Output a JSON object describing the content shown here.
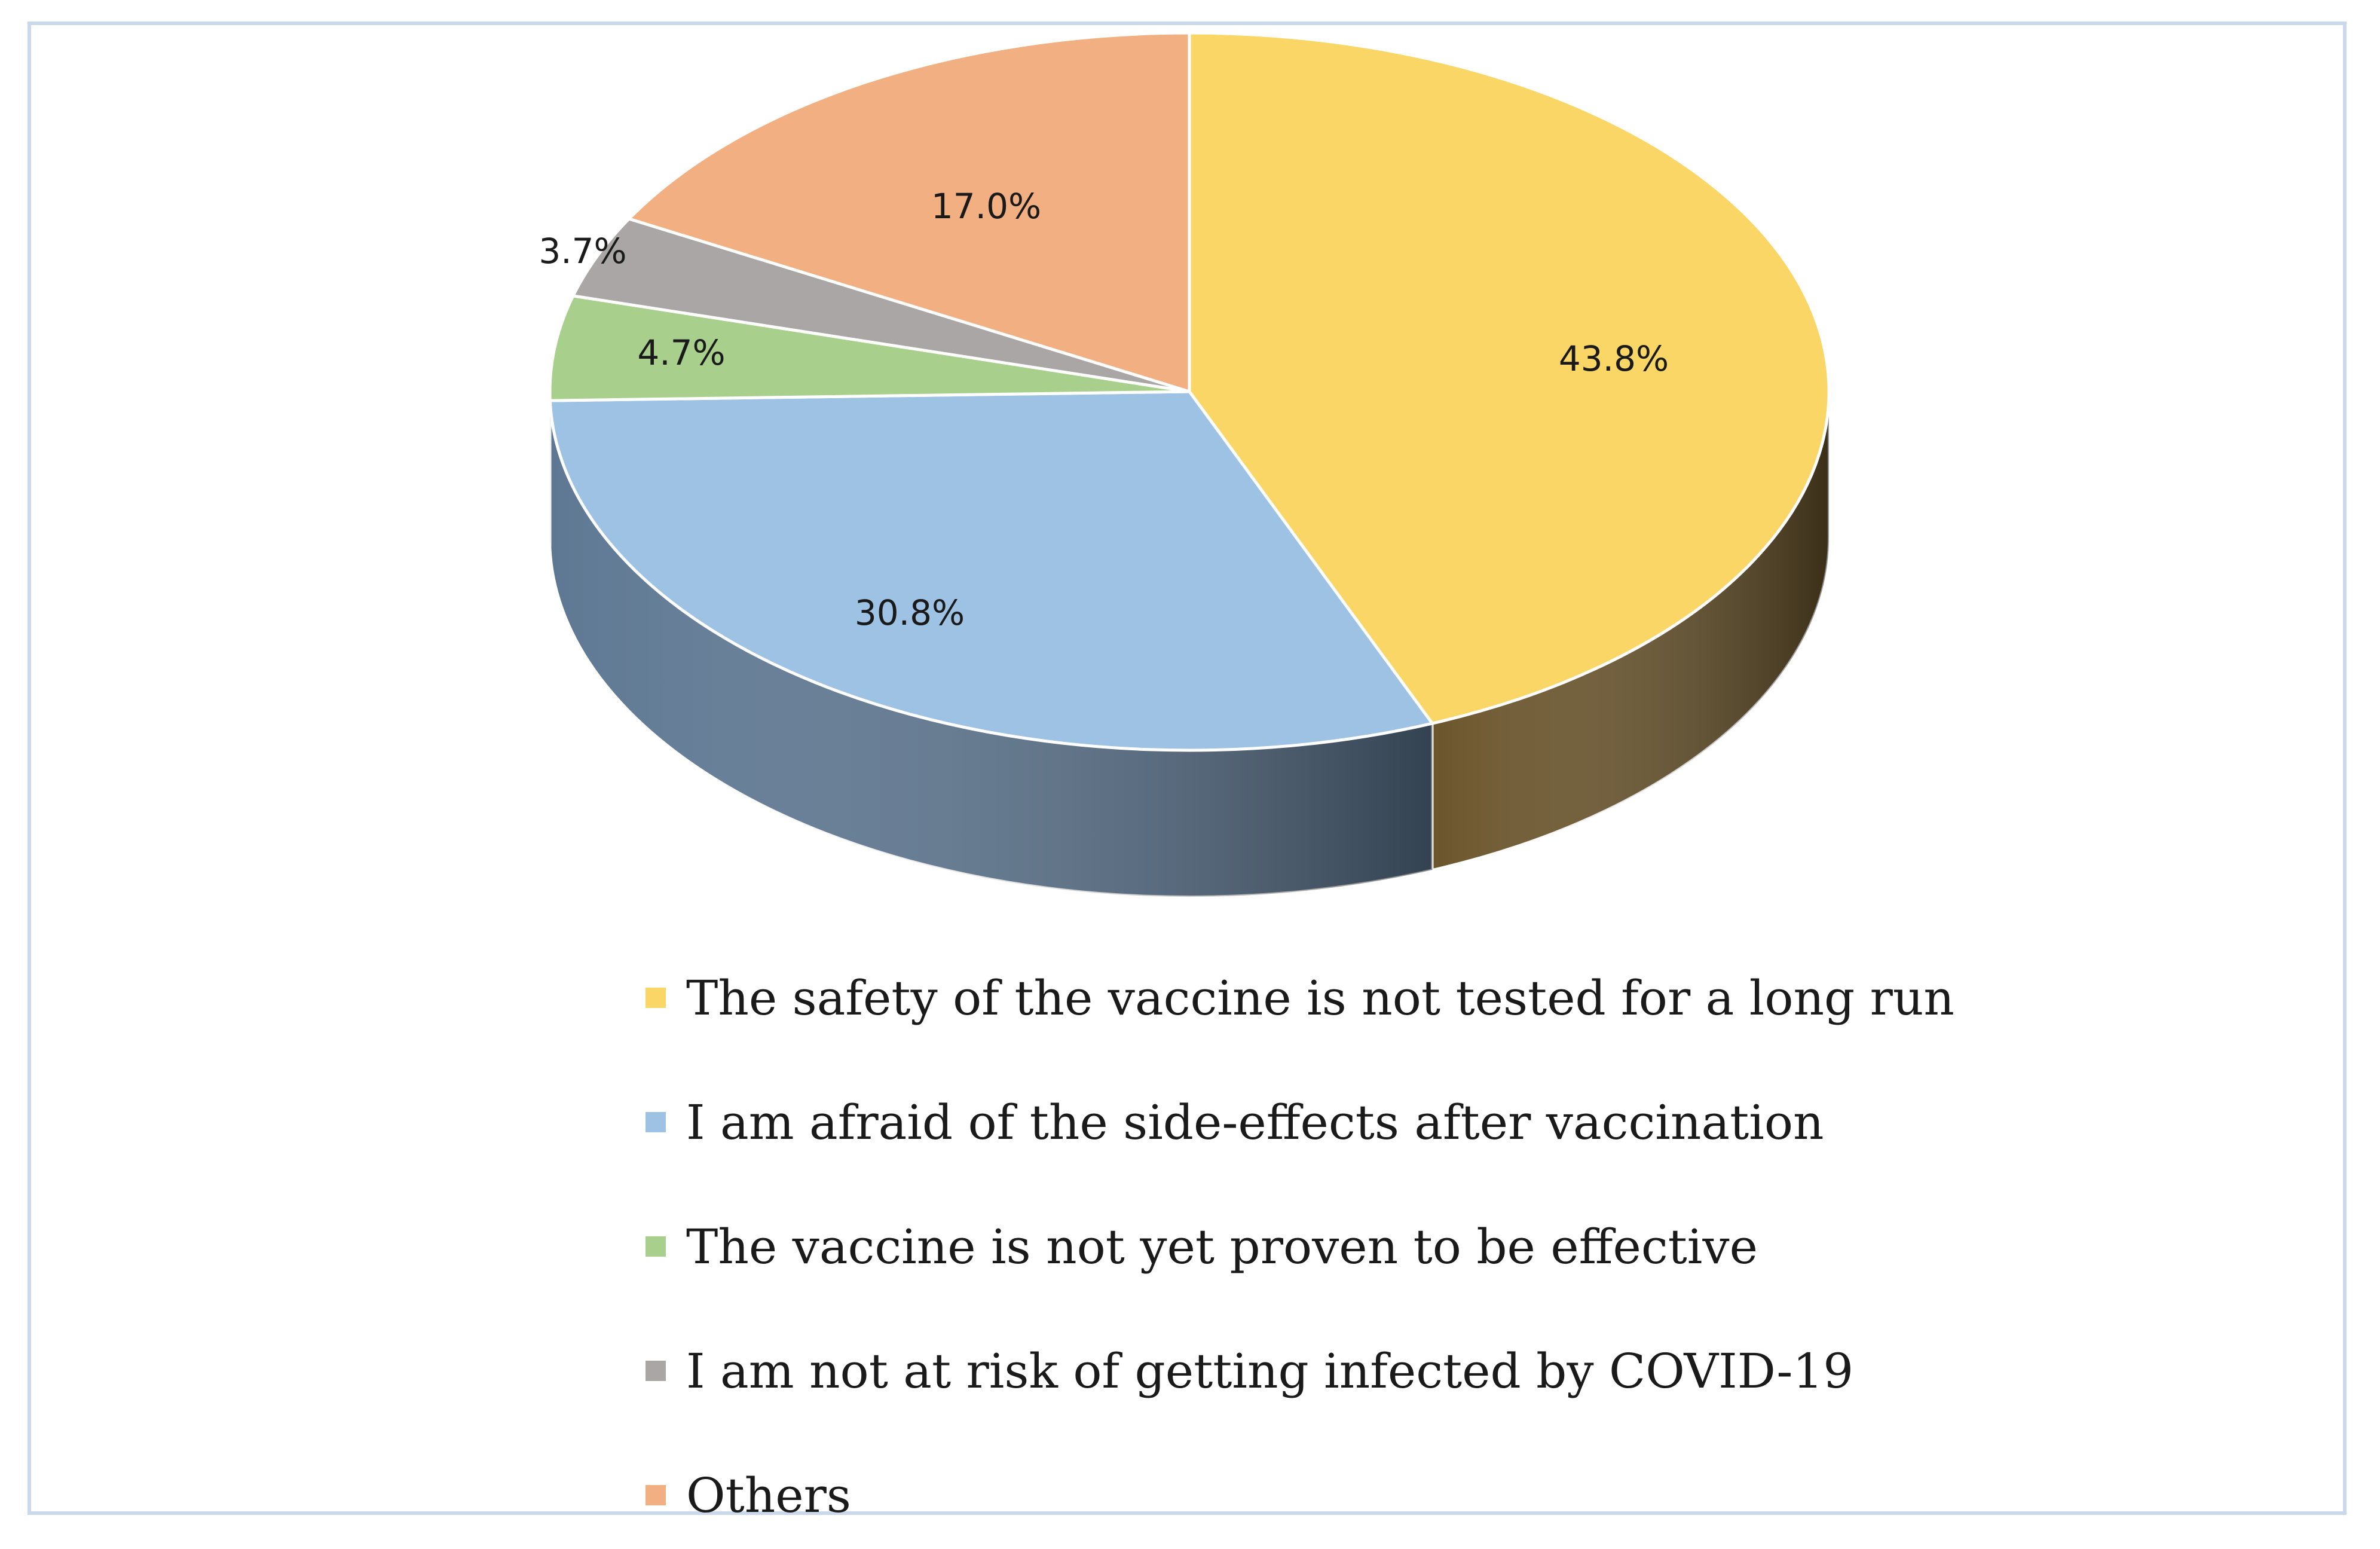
{
  "chart_data": {
    "type": "pie",
    "style": "3d",
    "slices": [
      {
        "label": "The safety of the vaccine is not tested for a long run",
        "value": 43.8,
        "value_label": "43.8%",
        "color": "#fad666",
        "side_color": "#6b552b"
      },
      {
        "label": "I am afraid of the side-effects after vaccination",
        "value": 30.8,
        "value_label": "30.8%",
        "color": "#9dc2e4",
        "side_color": "#5e7893"
      },
      {
        "label": "The vaccine is not yet proven to be effective",
        "value": 4.7,
        "value_label": "4.7%",
        "color": "#a8cf8c",
        "side_color": "#5f7a4e"
      },
      {
        "label": "I am not at risk of getting infected by COVID-19",
        "value": 3.7,
        "value_label": "3.7%",
        "color": "#aaa6a6",
        "side_color": "#666262"
      },
      {
        "label": "Others",
        "value": 17.0,
        "value_label": "17.0%",
        "color": "#f2af82",
        "side_color": "#8a5c3e"
      }
    ],
    "legend_position": "bottom"
  }
}
